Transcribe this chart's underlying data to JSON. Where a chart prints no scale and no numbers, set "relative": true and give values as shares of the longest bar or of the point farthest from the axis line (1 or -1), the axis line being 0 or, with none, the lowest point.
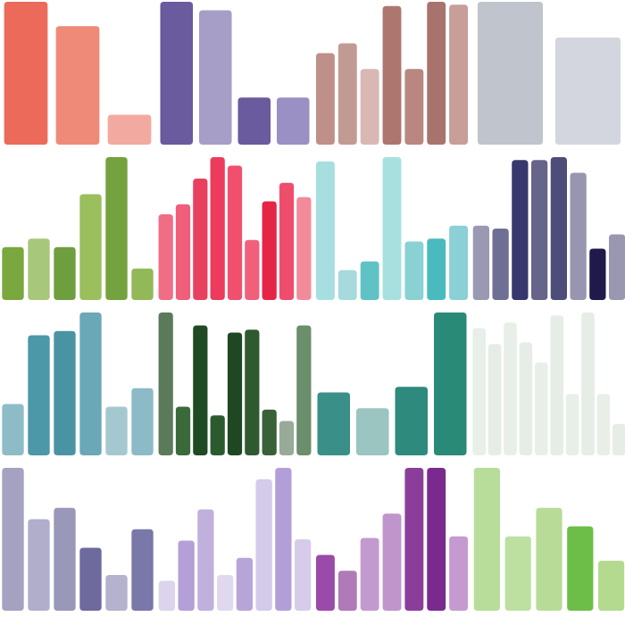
{
  "chart_data": [
    {
      "type": "bar",
      "relative": true,
      "categories": [
        null,
        null,
        null
      ],
      "values": [
        1,
        0.83,
        0.21
      ],
      "colors": [
        "#ec6a5a",
        "#ef8a78",
        "#f2aaa0"
      ]
    },
    {
      "type": "bar",
      "relative": true,
      "categories": [
        null,
        null,
        null,
        null
      ],
      "values": [
        1,
        0.94,
        0.33,
        0.33
      ],
      "colors": [
        "#6a5a9e",
        "#a79ec7",
        "#6a5a9e",
        "#9a90c4"
      ]
    },
    {
      "type": "bar",
      "relative": true,
      "categories": [
        null,
        null,
        null,
        null,
        null,
        null,
        null
      ],
      "values": [
        0.64,
        0.71,
        0.53,
        0.97,
        0.53,
        1,
        0.98
      ],
      "colors": [
        "#bf8f8a",
        "#c29a94",
        "#d9b8b4",
        "#ad7770",
        "#b98680",
        "#a8736c",
        "#c79e98"
      ]
    },
    {
      "type": "bar",
      "relative": true,
      "categories": [
        null,
        null
      ],
      "values": [
        1,
        0.75
      ],
      "colors": [
        "#c0c4cc",
        "#d3d6df"
      ]
    },
    {
      "type": "bar",
      "relative": true,
      "categories": [
        null,
        null,
        null,
        null,
        null,
        null
      ],
      "values": [
        0.37,
        0.43,
        0.37,
        0.74,
        1,
        0.22
      ],
      "colors": [
        "#7aa83f",
        "#a7c77a",
        "#6f9e3e",
        "#9bbf5d",
        "#74a23e",
        "#93b858"
      ]
    },
    {
      "type": "bar",
      "relative": true,
      "categories": [
        null,
        null,
        null,
        null,
        null,
        null,
        null,
        null,
        null
      ],
      "values": [
        0.6,
        0.67,
        0.85,
        1,
        0.94,
        0.42,
        0.69,
        0.82,
        0.72
      ],
      "colors": [
        "#f06d85",
        "#f05f7a",
        "#e8415f",
        "#ec3b5c",
        "#f0506d",
        "#f0607a",
        "#e52546",
        "#ee4e6c",
        "#f28a9a"
      ]
    },
    {
      "type": "bar",
      "relative": true,
      "categories": [
        null,
        null,
        null,
        null,
        null,
        null,
        null
      ],
      "values": [
        0.97,
        0.21,
        0.27,
        1,
        0.41,
        0.43,
        0.52
      ],
      "colors": [
        "#a7dfe0",
        "#a6dadc",
        "#5fc3c6",
        "#a8e0e0",
        "#8ad1d3",
        "#4bbabe",
        "#8ad0d4"
      ]
    },
    {
      "type": "bar",
      "relative": true,
      "categories": [
        null,
        null,
        null,
        null,
        null,
        null,
        null,
        null
      ],
      "values": [
        0.52,
        0.5,
        0.98,
        0.98,
        1,
        0.89,
        0.36,
        0.46
      ],
      "colors": [
        "#9a98b2",
        "#6f6e94",
        "#38386e",
        "#66648a",
        "#4e4c78",
        "#9795b0",
        "#1f1a4a",
        "#9a98b0"
      ]
    },
    {
      "type": "bar",
      "relative": true,
      "categories": [
        null,
        null,
        null,
        null,
        null,
        null
      ],
      "values": [
        0.36,
        0.84,
        0.87,
        1,
        0.34,
        0.47
      ],
      "colors": [
        "#8dbcc7",
        "#4c97a8",
        "#4a93a3",
        "#6aa8b7",
        "#a5c8d0",
        "#8cbac6"
      ]
    },
    {
      "type": "bar",
      "relative": true,
      "categories": [
        null,
        null,
        null,
        null,
        null,
        null,
        null,
        null,
        null
      ],
      "values": [
        1,
        0.34,
        0.91,
        0.28,
        0.86,
        0.88,
        0.32,
        0.24,
        0.91
      ],
      "colors": [
        "#5a7a5a",
        "#3a6a3a",
        "#1f4a24",
        "#2c5a2f",
        "#1f4822",
        "#2f5a30",
        "#3a6038",
        "#98ab98",
        "#6b8e6b"
      ]
    },
    {
      "type": "bar",
      "relative": true,
      "categories": [
        null,
        null,
        null,
        null
      ],
      "values": [
        0.44,
        0.33,
        0.48,
        1
      ],
      "colors": [
        "#3a9088",
        "#9ac5c0",
        "#2f8a7e",
        "#2a8a78"
      ]
    },
    {
      "type": "bar",
      "relative": true,
      "categories": [
        null,
        null,
        null,
        null,
        null,
        null,
        null,
        null,
        null,
        null
      ],
      "values": [
        0.89,
        0.78,
        0.93,
        0.79,
        0.65,
        0.98,
        0.43,
        1,
        0.43,
        0.22
      ],
      "colors": [
        "#e8efe8",
        "#e6ede6",
        "#e8efe8",
        "#e6ede6",
        "#e8efe8",
        "#e6ede6",
        "#e8efe8",
        "#e6ede6",
        "#e8efe8",
        "#e6ede6"
      ]
    },
    {
      "type": "bar",
      "relative": true,
      "categories": [
        null,
        null,
        null,
        null,
        null,
        null
      ],
      "values": [
        1,
        0.64,
        0.72,
        0.44,
        0.25,
        0.57
      ],
      "colors": [
        "#a4a2c0",
        "#b0aecb",
        "#9a98b8",
        "#6e6a9e",
        "#b4b2cc",
        "#7a78a8"
      ]
    },
    {
      "type": "bar",
      "relative": true,
      "categories": [
        null,
        null,
        null,
        null,
        null,
        null,
        null,
        null
      ],
      "values": [
        0.21,
        0.49,
        0.71,
        0.25,
        0.37,
        0.92,
        1,
        0.5
      ],
      "colors": [
        "#dcd3ec",
        "#b3a0d6",
        "#c0b0dc",
        "#e0d8ef",
        "#b8a5d8",
        "#d4caea",
        "#b39fd8",
        "#d6ccea"
      ]
    },
    {
      "type": "bar",
      "relative": true,
      "categories": [
        null,
        null,
        null,
        null,
        null,
        null,
        null
      ],
      "values": [
        0.39,
        0.28,
        0.51,
        0.68,
        1,
        1,
        0.52
      ],
      "colors": [
        "#9a4aa8",
        "#b07ab8",
        "#c29ad0",
        "#c095cc",
        "#8a3e9a",
        "#7a2a8e",
        "#c49ad0"
      ]
    },
    {
      "type": "bar",
      "relative": true,
      "categories": [
        null,
        null,
        null,
        null,
        null
      ],
      "values": [
        1,
        0.52,
        0.72,
        0.59,
        0.35
      ],
      "colors": [
        "#b8dc9a",
        "#bde0a0",
        "#b8dc98",
        "#6cbe48",
        "#b4da90"
      ]
    }
  ]
}
